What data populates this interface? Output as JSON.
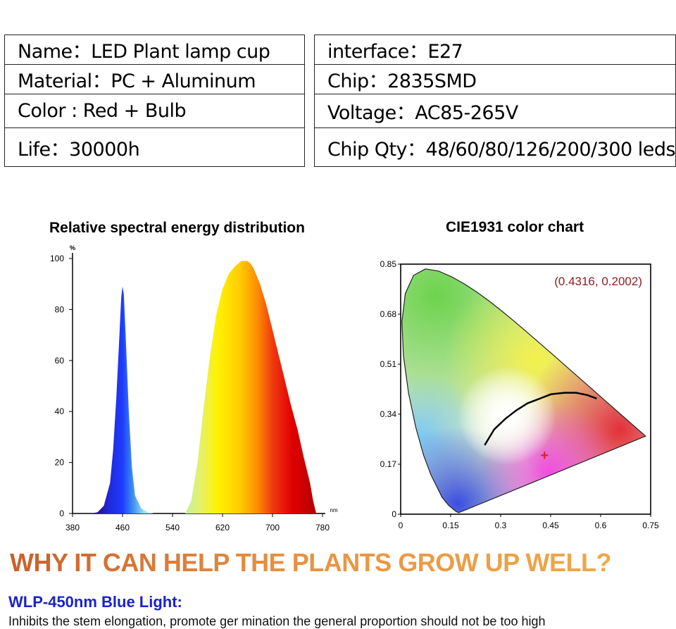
{
  "specs": {
    "left": [
      {
        "label": "Name：",
        "value": "LED Plant lamp cup"
      },
      {
        "label": "Material：",
        "value": "PC + Aluminum"
      },
      {
        "label": "Color : ",
        "value": "Red + Bulb"
      },
      {
        "label": "Life：",
        "value": "30000h"
      }
    ],
    "right": [
      {
        "label": "interface：",
        "value": "E27"
      },
      {
        "label": "Chip：",
        "value": "2835SMD"
      },
      {
        "label": "Voltage：",
        "value": "AC85-265V"
      },
      {
        "label": "Chip Qty：",
        "value": "48/60/80/126/200/300 leds"
      }
    ]
  },
  "chart_data": [
    {
      "type": "area",
      "title": "Relative spectral energy distribution",
      "ylabel": "%",
      "xlabel": "nm",
      "xlim": [
        380,
        780
      ],
      "ylim": [
        0,
        100
      ],
      "xticks": [
        "380",
        "460",
        "540",
        "620",
        "700",
        "780"
      ],
      "yticks": [
        "0",
        "20",
        "40",
        "60",
        "80",
        "100"
      ],
      "grid": false,
      "x": [
        410,
        420,
        430,
        440,
        445,
        450,
        455,
        458,
        460,
        462,
        465,
        470,
        475,
        480,
        490,
        500,
        510,
        520,
        560,
        570,
        580,
        590,
        600,
        610,
        620,
        630,
        640,
        650,
        660,
        665,
        670,
        680,
        690,
        700,
        710,
        720,
        730,
        740,
        750,
        760,
        765,
        770
      ],
      "values": [
        0,
        0.5,
        3,
        12,
        25,
        45,
        70,
        85,
        89,
        86,
        70,
        40,
        18,
        7,
        2,
        0.5,
        0,
        0,
        0,
        5,
        20,
        42,
        62,
        78,
        88,
        94,
        97,
        99,
        99,
        98,
        96,
        90,
        82,
        72,
        62,
        52,
        42,
        33,
        22,
        12,
        5,
        0
      ]
    },
    {
      "type": "scatter",
      "title": "CIE1931 color chart",
      "xlim": [
        0,
        0.75
      ],
      "ylim": [
        0,
        0.85
      ],
      "xticks": [
        "0",
        "0.15",
        "0.3",
        "0.45",
        "0.6",
        "0.75"
      ],
      "yticks": [
        "0",
        "0.17",
        "0.34",
        "0.51",
        "0.68",
        "0.85"
      ],
      "annotation": "(0.4316,  0.2002)",
      "point": {
        "x": 0.4316,
        "y": 0.2002
      },
      "colors": {
        "point": "#e02020",
        "annotation": "#8b2020"
      }
    }
  ],
  "headline": "WHY IT CAN HELP THE PLANTS GROW UP WELL?",
  "blue_heading": "WLP-450nm Blue Light:",
  "description": "Inhibits the stem elongation, promote ger mination the general proportion should not be too high"
}
